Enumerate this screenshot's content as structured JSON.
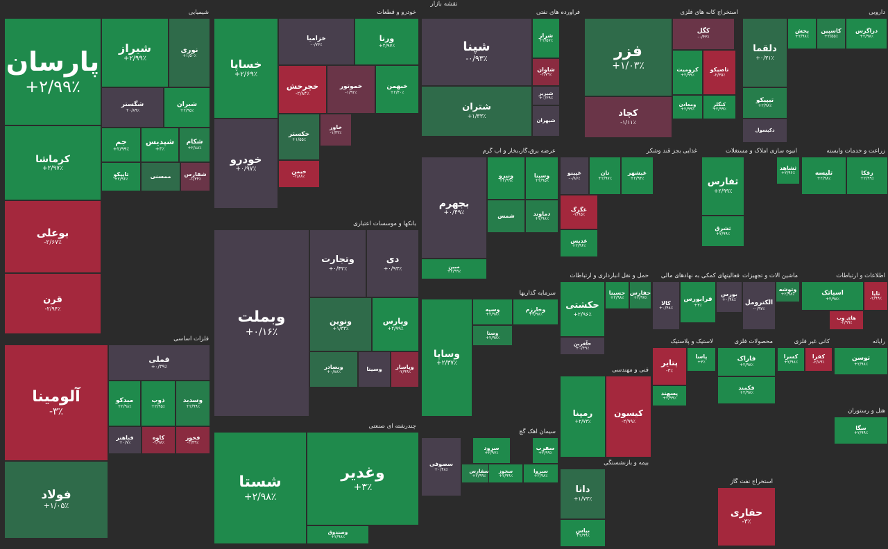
{
  "title": "نقشه بازار",
  "colors": {
    "g3": "#1f8a4c",
    "g2": "#267d4b",
    "g1": "#2f6b4a",
    "z": "#483f4d",
    "r1": "#6a3548",
    "r2": "#8a2b40",
    "r3": "#a4283d",
    "bg": "#2b2b2b"
  },
  "sectors": [
    {
      "label": "شیمیایی",
      "tiles": [
        {
          "name": "پارسان",
          "change": "+۲/۹۹٪",
          "cls": "g3"
        },
        {
          "name": "شیراز",
          "change": "+۲/۹۹٪",
          "cls": "g3"
        },
        {
          "name": "نوری",
          "change": "+۱/۵۰٪",
          "cls": "g1"
        },
        {
          "name": "کرماشا",
          "change": "+۲/۹۷٪",
          "cls": "g3"
        },
        {
          "name": "شگستر",
          "change": "+۰/۸۹٪",
          "cls": "z"
        },
        {
          "name": "شیران",
          "change": "+۲/۹۵٪",
          "cls": "g3"
        },
        {
          "name": "بوعلی",
          "change": "-۲/۶۷٪",
          "cls": "r3"
        },
        {
          "name": "جم",
          "change": "+۲/۹۹٪",
          "cls": "g3"
        },
        {
          "name": "شپدیس",
          "change": "+۳٪",
          "cls": "g3"
        },
        {
          "name": "شکام",
          "change": "+۲/۸۸٪",
          "cls": "g2"
        },
        {
          "name": "تاپیکو",
          "change": "+۲/۹۶٪",
          "cls": "g3"
        },
        {
          "name": "ممسنی",
          "change": "",
          "cls": "g1"
        },
        {
          "name": "شفارس",
          "change": "-۱/۳۴٪",
          "cls": "r1"
        },
        {
          "name": "قرن",
          "change": "-۲/۹۴٪",
          "cls": "r3"
        }
      ]
    },
    {
      "label": "فلزات اساسی",
      "tiles": [
        {
          "name": "آلومینا",
          "change": "-۳٪",
          "cls": "r3"
        },
        {
          "name": "فملی",
          "change": "+۰/۳۹٪",
          "cls": "z"
        },
        {
          "name": "میدکو",
          "change": "+۲/۹۸٪",
          "cls": "g3"
        },
        {
          "name": "ذوب",
          "change": "+۲/۹۵٪",
          "cls": "g3"
        },
        {
          "name": "وسدید",
          "change": "+۲/۹۹٪",
          "cls": "g2"
        },
        {
          "name": "فولاد",
          "change": "+۱/۰۵٪",
          "cls": "g1"
        },
        {
          "name": "فباهنر",
          "change": "+۰/۷٪",
          "cls": "z"
        },
        {
          "name": "کاوه",
          "change": "-۲/۹۸٪",
          "cls": "r2"
        },
        {
          "name": "فخوز",
          "change": "-۲/۴۹٪",
          "cls": "r2"
        }
      ]
    },
    {
      "label": "خودرو و قطعات",
      "tiles": [
        {
          "name": "خساپا",
          "change": "+۲/۶۹٪",
          "cls": "g3"
        },
        {
          "name": "خزامیا",
          "change": "-۰/۷۶٪",
          "cls": "z"
        },
        {
          "name": "ورنا",
          "change": "+۲/۹۷٪",
          "cls": "g3"
        },
        {
          "name": "خودرو",
          "change": "+۰/۹۷٪",
          "cls": "z"
        },
        {
          "name": "خچرخش",
          "change": "-۲/۸۴٪",
          "cls": "r3"
        },
        {
          "name": "خموتور",
          "change": "-۱/۹۲٪",
          "cls": "r1"
        },
        {
          "name": "خبهمن",
          "change": "+۲/۴۰٪",
          "cls": "g3"
        },
        {
          "name": "خکستر",
          "change": "+۱/۵۵٪",
          "cls": "g1"
        },
        {
          "name": "خاور",
          "change": "-۱/۳۲٪",
          "cls": "r1"
        },
        {
          "name": "خیمن",
          "change": "-۲/۸۸٪",
          "cls": "r3"
        }
      ]
    },
    {
      "label": "فرآورده های نفتی",
      "tiles": [
        {
          "name": "شپنا",
          "change": "-۰/۹۳٪",
          "cls": "z"
        },
        {
          "name": "شراز",
          "change": "+۲/۵۷٪",
          "cls": "g3"
        },
        {
          "name": "شاوان",
          "change": "-۲/۷۹٪",
          "cls": "r2"
        },
        {
          "name": "شبریز",
          "change": "+۰/۲۹٪",
          "cls": "z"
        },
        {
          "name": "شتران",
          "change": "+۱/۳۳٪",
          "cls": "g1"
        },
        {
          "name": "شیهران",
          "change": "",
          "cls": "z"
        }
      ]
    },
    {
      "label": "استخراج کانه های فلزی",
      "tiles": [
        {
          "name": "فزر",
          "change": "+۱/۰۳٪",
          "cls": "g1"
        },
        {
          "name": "کگل",
          "change": "-۰/۴۳٪",
          "cls": "r1"
        },
        {
          "name": "کچاد",
          "change": "-۱/۱۱٪",
          "cls": "r1"
        },
        {
          "name": "کرومیت",
          "change": "+۲/۹۹٪",
          "cls": "g3"
        },
        {
          "name": "تاصیکو",
          "change": "-۲/۳۵٪",
          "cls": "r3"
        },
        {
          "name": "ومعادن",
          "change": "+۲/۹۹٪",
          "cls": "g3"
        },
        {
          "name": "کنگلر",
          "change": "+۲/۹۹٪",
          "cls": "g3"
        }
      ]
    },
    {
      "label": "دارویی",
      "tiles": [
        {
          "name": "دلقما",
          "change": "+۰/۳۱٪",
          "cls": "g1"
        },
        {
          "name": "پخش",
          "change": "+۲/۹۸٪",
          "cls": "g3"
        },
        {
          "name": "کاسپین",
          "change": "+۲/۵۵٪",
          "cls": "g2"
        },
        {
          "name": "دزاگرس",
          "change": "+۲/۹۸٪",
          "cls": "g3"
        },
        {
          "name": "تیپیکو",
          "change": "+۲/۹۸٪",
          "cls": "g2"
        },
        {
          "name": "دکپسول",
          "change": "",
          "cls": "z"
        }
      ]
    },
    {
      "label": "عرضه برق،گاز،بخار و آب گرم",
      "tiles": [
        {
          "name": "بجهرم",
          "change": "+۰/۴۹٪",
          "cls": "z"
        },
        {
          "name": "ونیرو",
          "change": "+۲/۹۹٪",
          "cls": "g3"
        },
        {
          "name": "وسپنا",
          "change": "+۲/۹۵٪",
          "cls": "g3"
        },
        {
          "name": "شمس",
          "change": "",
          "cls": "g2"
        },
        {
          "name": "دماوند",
          "change": "+۲/۹۸٪",
          "cls": "g2"
        },
        {
          "name": "مبین",
          "change": "+۲/۹۹٪",
          "cls": "g3"
        }
      ]
    },
    {
      "label": "غذایی بجز قند وشکر",
      "tiles": [
        {
          "name": "غپینو",
          "change": "-۰/۸۶٪",
          "cls": "z"
        },
        {
          "name": "تان",
          "change": "+۲/۹۷٪",
          "cls": "g3"
        },
        {
          "name": "غبشهر",
          "change": "+۲/۹۴٪",
          "cls": "g3"
        },
        {
          "name": "غگرگ",
          "change": "-۲/۹۵٪",
          "cls": "r3"
        },
        {
          "name": "غدیس",
          "change": "+۲/۹۶٪",
          "cls": "g3"
        }
      ]
    },
    {
      "label": "انبوه سازی املاک و مستغلات",
      "tiles": [
        {
          "name": "ثفارس",
          "change": "+۲/۹۹٪",
          "cls": "g3"
        },
        {
          "name": "ثشرق",
          "change": "+۲/۹۹٪",
          "cls": "g3"
        },
        {
          "name": "ثشاهد",
          "change": "+۲/۹۶٪",
          "cls": "g3"
        }
      ]
    },
    {
      "label": "زراعت و خدمات وابسته",
      "tiles": [
        {
          "name": "تلیسه",
          "change": "+۲/۹۸٪",
          "cls": "g3"
        },
        {
          "name": "زقکا",
          "change": "+۲/۹۹٪",
          "cls": "g3"
        }
      ]
    },
    {
      "label": "بانکها و موسسات اعتباری",
      "tiles": [
        {
          "name": "وبملت",
          "change": "+۰/۱۶٪",
          "cls": "z"
        },
        {
          "name": "وتجارت",
          "change": "+۰/۴۲٪",
          "cls": "z"
        },
        {
          "name": "دی",
          "change": "+۰/۹۳٪",
          "cls": "z"
        },
        {
          "name": "ونوین",
          "change": "+۱/۳۳٪",
          "cls": "g1"
        },
        {
          "name": "وپارس",
          "change": "+۲/۹۹٪",
          "cls": "g3"
        },
        {
          "name": "وبصادر",
          "change": "+۰/۸۸٪",
          "cls": "g1"
        },
        {
          "name": "وسینا",
          "change": "",
          "cls": "z"
        },
        {
          "name": "وپاسار",
          "change": "-۲/۹۹٪",
          "cls": "r2"
        }
      ]
    },
    {
      "label": "سرمایه گذاریها",
      "tiles": [
        {
          "name": "وساپا",
          "change": "+۲/۳۷٪",
          "cls": "g3"
        },
        {
          "name": "وسپه",
          "change": "+۲/۹۸٪",
          "cls": "g3"
        },
        {
          "name": "وخارزم",
          "change": "+۲/۹۸٪",
          "cls": "g3"
        },
        {
          "name": "وصنا",
          "change": "+۲/۹۸٪",
          "cls": "g2"
        }
      ]
    },
    {
      "label": "حمل و نقل انبارداری و ارتباطات",
      "tiles": [
        {
          "name": "حکشتی",
          "change": "+۲/۹۶٪",
          "cls": "g3"
        },
        {
          "name": "حسینا",
          "change": "+۲/۹۸٪",
          "cls": "g3"
        },
        {
          "name": "حفارس",
          "change": "+۲/۹۷٪",
          "cls": "g2"
        },
        {
          "name": "حآفرین",
          "change": "+۰/۴۹٪",
          "cls": "z"
        }
      ]
    },
    {
      "label": "فعالیتهای کمکی به نهادهای مالی",
      "tiles": [
        {
          "name": "فرابورس",
          "change": "+۳٪",
          "cls": "g3"
        },
        {
          "name": "بورس",
          "change": "+۰/۴۸٪",
          "cls": "z"
        },
        {
          "name": "کالا",
          "change": "+۰/۴۸٪",
          "cls": "z"
        }
      ]
    },
    {
      "label": "ماشین آلات و تجهیزات",
      "tiles": [
        {
          "name": "الکترومل",
          "change": "-۰/۹۷٪",
          "cls": "z"
        },
        {
          "name": "وتوشه",
          "change": "+۲/۹۸٪",
          "cls": "g2"
        }
      ]
    },
    {
      "label": "اطلاعات و ارتباطات",
      "tiles": [
        {
          "name": "اسیاتک",
          "change": "+۲/۹۸٪",
          "cls": "g3"
        },
        {
          "name": "تاپا",
          "change": "-۲/۹۹٪",
          "cls": "r3"
        },
        {
          "name": "های وب",
          "change": "-۲/۹۹٪",
          "cls": "r3"
        }
      ]
    },
    {
      "label": "چندرشته ای صنعتی",
      "tiles": [
        {
          "name": "شستا",
          "change": "+۲/۹۸٪",
          "cls": "g3"
        },
        {
          "name": "وغدیر",
          "change": "+۳٪",
          "cls": "g3"
        },
        {
          "name": "وصندوق",
          "change": "+۲/۹۸٪",
          "cls": "g3"
        }
      ]
    },
    {
      "label": "سیمان آهک گچ",
      "tiles": [
        {
          "name": "سصوفی",
          "change": "+۰/۴۸٪",
          "cls": "z"
        },
        {
          "name": "سرود",
          "change": "+۲/۹۷٪",
          "cls": "g3"
        },
        {
          "name": "سفرب",
          "change": "+۲/۹۹٪",
          "cls": "g3"
        },
        {
          "name": "سفارس",
          "change": "+۲/۹۹٪",
          "cls": "g2"
        },
        {
          "name": "سخوز",
          "change": "+۲/۹۹٪",
          "cls": "g3"
        },
        {
          "name": "سبزوا",
          "change": "+۲/۹۸٪",
          "cls": "g3"
        }
      ]
    },
    {
      "label": "فنی و مهندسی",
      "tiles": [
        {
          "name": "رمپنا",
          "change": "+۲/۷۳٪",
          "cls": "g3"
        },
        {
          "name": "کیسون",
          "change": "-۲/۹۹٪",
          "cls": "r3"
        }
      ]
    },
    {
      "label": "بیمه و بازنشستگی",
      "tiles": [
        {
          "name": "دانا",
          "change": "+۱/۷۳٪",
          "cls": "g1"
        },
        {
          "name": "بپاس",
          "change": "+۲/۹۹٪",
          "cls": "g3"
        }
      ]
    },
    {
      "label": "لاستیک و پلاستیک",
      "tiles": [
        {
          "name": "پتایر",
          "change": "-۳٪",
          "cls": "r3"
        },
        {
          "name": "پاسا",
          "change": "+۳٪",
          "cls": "g3"
        },
        {
          "name": "پسهند",
          "change": "+۲/۹۹٪",
          "cls": "g3"
        }
      ]
    },
    {
      "label": "محصولات فلزی",
      "tiles": [
        {
          "name": "فاراک",
          "change": "+۲/۹۸٪",
          "cls": "g3"
        },
        {
          "name": "فکمند",
          "change": "+۲/۹۸٪",
          "cls": "g3"
        }
      ]
    },
    {
      "label": "کانی غیر فلزی",
      "tiles": [
        {
          "name": "کفرا",
          "change": "-۲/۸۹٪",
          "cls": "r3"
        },
        {
          "name": "کسرا",
          "change": "+۲/۹۸٪",
          "cls": "g3"
        }
      ]
    },
    {
      "label": "رایانه",
      "tiles": [
        {
          "name": "توسن",
          "change": "+۲/۹۸٪",
          "cls": "g3"
        }
      ]
    },
    {
      "label": "استخراج نفت گاز",
      "tiles": [
        {
          "name": "حفاری",
          "change": "-۳٪",
          "cls": "r3"
        }
      ]
    },
    {
      "label": "هتل و رستوران",
      "tiles": [
        {
          "name": "سگا",
          "change": "+۲/۹۹٪",
          "cls": "g3"
        }
      ]
    }
  ]
}
